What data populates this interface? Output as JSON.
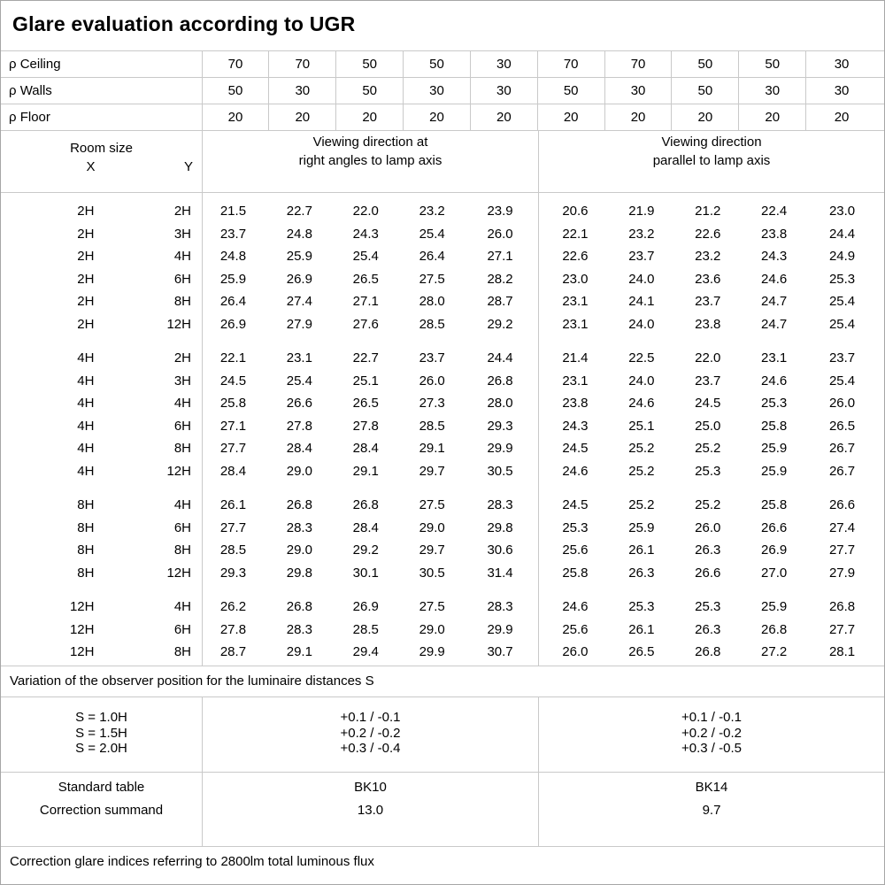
{
  "title": "Glare evaluation according to UGR",
  "reflectance_rows": [
    {
      "label": "ρ Ceiling",
      "values": [
        "70",
        "70",
        "50",
        "50",
        "30",
        "70",
        "70",
        "50",
        "50",
        "30"
      ]
    },
    {
      "label": "ρ Walls",
      "values": [
        "50",
        "30",
        "50",
        "30",
        "30",
        "50",
        "30",
        "50",
        "30",
        "30"
      ]
    },
    {
      "label": "ρ Floor",
      "values": [
        "20",
        "20",
        "20",
        "20",
        "20",
        "20",
        "20",
        "20",
        "20",
        "20"
      ]
    }
  ],
  "header": {
    "room_size_label": "Room size",
    "x_label": "X",
    "y_label": "Y",
    "group1_line1": "Viewing direction at",
    "group1_line2": "right angles to lamp axis",
    "group2_line1": "Viewing direction",
    "group2_line2": "parallel to lamp axis"
  },
  "blocks": [
    {
      "rows": [
        {
          "x": "2H",
          "y": "2H",
          "right_angles": [
            "21.5",
            "22.7",
            "22.0",
            "23.2",
            "23.9"
          ],
          "parallel": [
            "20.6",
            "21.9",
            "21.2",
            "22.4",
            "23.0"
          ]
        },
        {
          "x": "2H",
          "y": "3H",
          "right_angles": [
            "23.7",
            "24.8",
            "24.3",
            "25.4",
            "26.0"
          ],
          "parallel": [
            "22.1",
            "23.2",
            "22.6",
            "23.8",
            "24.4"
          ]
        },
        {
          "x": "2H",
          "y": "4H",
          "right_angles": [
            "24.8",
            "25.9",
            "25.4",
            "26.4",
            "27.1"
          ],
          "parallel": [
            "22.6",
            "23.7",
            "23.2",
            "24.3",
            "24.9"
          ]
        },
        {
          "x": "2H",
          "y": "6H",
          "right_angles": [
            "25.9",
            "26.9",
            "26.5",
            "27.5",
            "28.2"
          ],
          "parallel": [
            "23.0",
            "24.0",
            "23.6",
            "24.6",
            "25.3"
          ]
        },
        {
          "x": "2H",
          "y": "8H",
          "right_angles": [
            "26.4",
            "27.4",
            "27.1",
            "28.0",
            "28.7"
          ],
          "parallel": [
            "23.1",
            "24.1",
            "23.7",
            "24.7",
            "25.4"
          ]
        },
        {
          "x": "2H",
          "y": "12H",
          "right_angles": [
            "26.9",
            "27.9",
            "27.6",
            "28.5",
            "29.2"
          ],
          "parallel": [
            "23.1",
            "24.0",
            "23.8",
            "24.7",
            "25.4"
          ]
        }
      ]
    },
    {
      "rows": [
        {
          "x": "4H",
          "y": "2H",
          "right_angles": [
            "22.1",
            "23.1",
            "22.7",
            "23.7",
            "24.4"
          ],
          "parallel": [
            "21.4",
            "22.5",
            "22.0",
            "23.1",
            "23.7"
          ]
        },
        {
          "x": "4H",
          "y": "3H",
          "right_angles": [
            "24.5",
            "25.4",
            "25.1",
            "26.0",
            "26.8"
          ],
          "parallel": [
            "23.1",
            "24.0",
            "23.7",
            "24.6",
            "25.4"
          ]
        },
        {
          "x": "4H",
          "y": "4H",
          "right_angles": [
            "25.8",
            "26.6",
            "26.5",
            "27.3",
            "28.0"
          ],
          "parallel": [
            "23.8",
            "24.6",
            "24.5",
            "25.3",
            "26.0"
          ]
        },
        {
          "x": "4H",
          "y": "6H",
          "right_angles": [
            "27.1",
            "27.8",
            "27.8",
            "28.5",
            "29.3"
          ],
          "parallel": [
            "24.3",
            "25.1",
            "25.0",
            "25.8",
            "26.5"
          ]
        },
        {
          "x": "4H",
          "y": "8H",
          "right_angles": [
            "27.7",
            "28.4",
            "28.4",
            "29.1",
            "29.9"
          ],
          "parallel": [
            "24.5",
            "25.2",
            "25.2",
            "25.9",
            "26.7"
          ]
        },
        {
          "x": "4H",
          "y": "12H",
          "right_angles": [
            "28.4",
            "29.0",
            "29.1",
            "29.7",
            "30.5"
          ],
          "parallel": [
            "24.6",
            "25.2",
            "25.3",
            "25.9",
            "26.7"
          ]
        }
      ]
    },
    {
      "rows": [
        {
          "x": "8H",
          "y": "4H",
          "right_angles": [
            "26.1",
            "26.8",
            "26.8",
            "27.5",
            "28.3"
          ],
          "parallel": [
            "24.5",
            "25.2",
            "25.2",
            "25.8",
            "26.6"
          ]
        },
        {
          "x": "8H",
          "y": "6H",
          "right_angles": [
            "27.7",
            "28.3",
            "28.4",
            "29.0",
            "29.8"
          ],
          "parallel": [
            "25.3",
            "25.9",
            "26.0",
            "26.6",
            "27.4"
          ]
        },
        {
          "x": "8H",
          "y": "8H",
          "right_angles": [
            "28.5",
            "29.0",
            "29.2",
            "29.7",
            "30.6"
          ],
          "parallel": [
            "25.6",
            "26.1",
            "26.3",
            "26.9",
            "27.7"
          ]
        },
        {
          "x": "8H",
          "y": "12H",
          "right_angles": [
            "29.3",
            "29.8",
            "30.1",
            "30.5",
            "31.4"
          ],
          "parallel": [
            "25.8",
            "26.3",
            "26.6",
            "27.0",
            "27.9"
          ]
        }
      ]
    },
    {
      "rows": [
        {
          "x": "12H",
          "y": "4H",
          "right_angles": [
            "26.2",
            "26.8",
            "26.9",
            "27.5",
            "28.3"
          ],
          "parallel": [
            "24.6",
            "25.3",
            "25.3",
            "25.9",
            "26.8"
          ]
        },
        {
          "x": "12H",
          "y": "6H",
          "right_angles": [
            "27.8",
            "28.3",
            "28.5",
            "29.0",
            "29.9"
          ],
          "parallel": [
            "25.6",
            "26.1",
            "26.3",
            "26.8",
            "27.7"
          ]
        },
        {
          "x": "12H",
          "y": "8H",
          "right_angles": [
            "28.7",
            "29.1",
            "29.4",
            "29.9",
            "30.7"
          ],
          "parallel": [
            "26.0",
            "26.5",
            "26.8",
            "27.2",
            "28.1"
          ]
        }
      ]
    }
  ],
  "variation_note": "Variation of the observer position for the luminaire distances S",
  "variation": {
    "labels": [
      "S = 1.0H",
      "S = 1.5H",
      "S = 2.0H"
    ],
    "group1": [
      "+0.1 / -0.1",
      "+0.2 / -0.2",
      "+0.3 / -0.4"
    ],
    "group2": [
      "+0.1 / -0.1",
      "+0.2 / -0.2",
      "+0.3 / -0.5"
    ]
  },
  "summary": {
    "labels": [
      "Standard table",
      "Correction summand"
    ],
    "group1": [
      "BK10",
      "13.0"
    ],
    "group2": [
      "BK14",
      "9.7"
    ]
  },
  "footer_note": "Correction glare indices referring to 2800lm total luminous flux"
}
